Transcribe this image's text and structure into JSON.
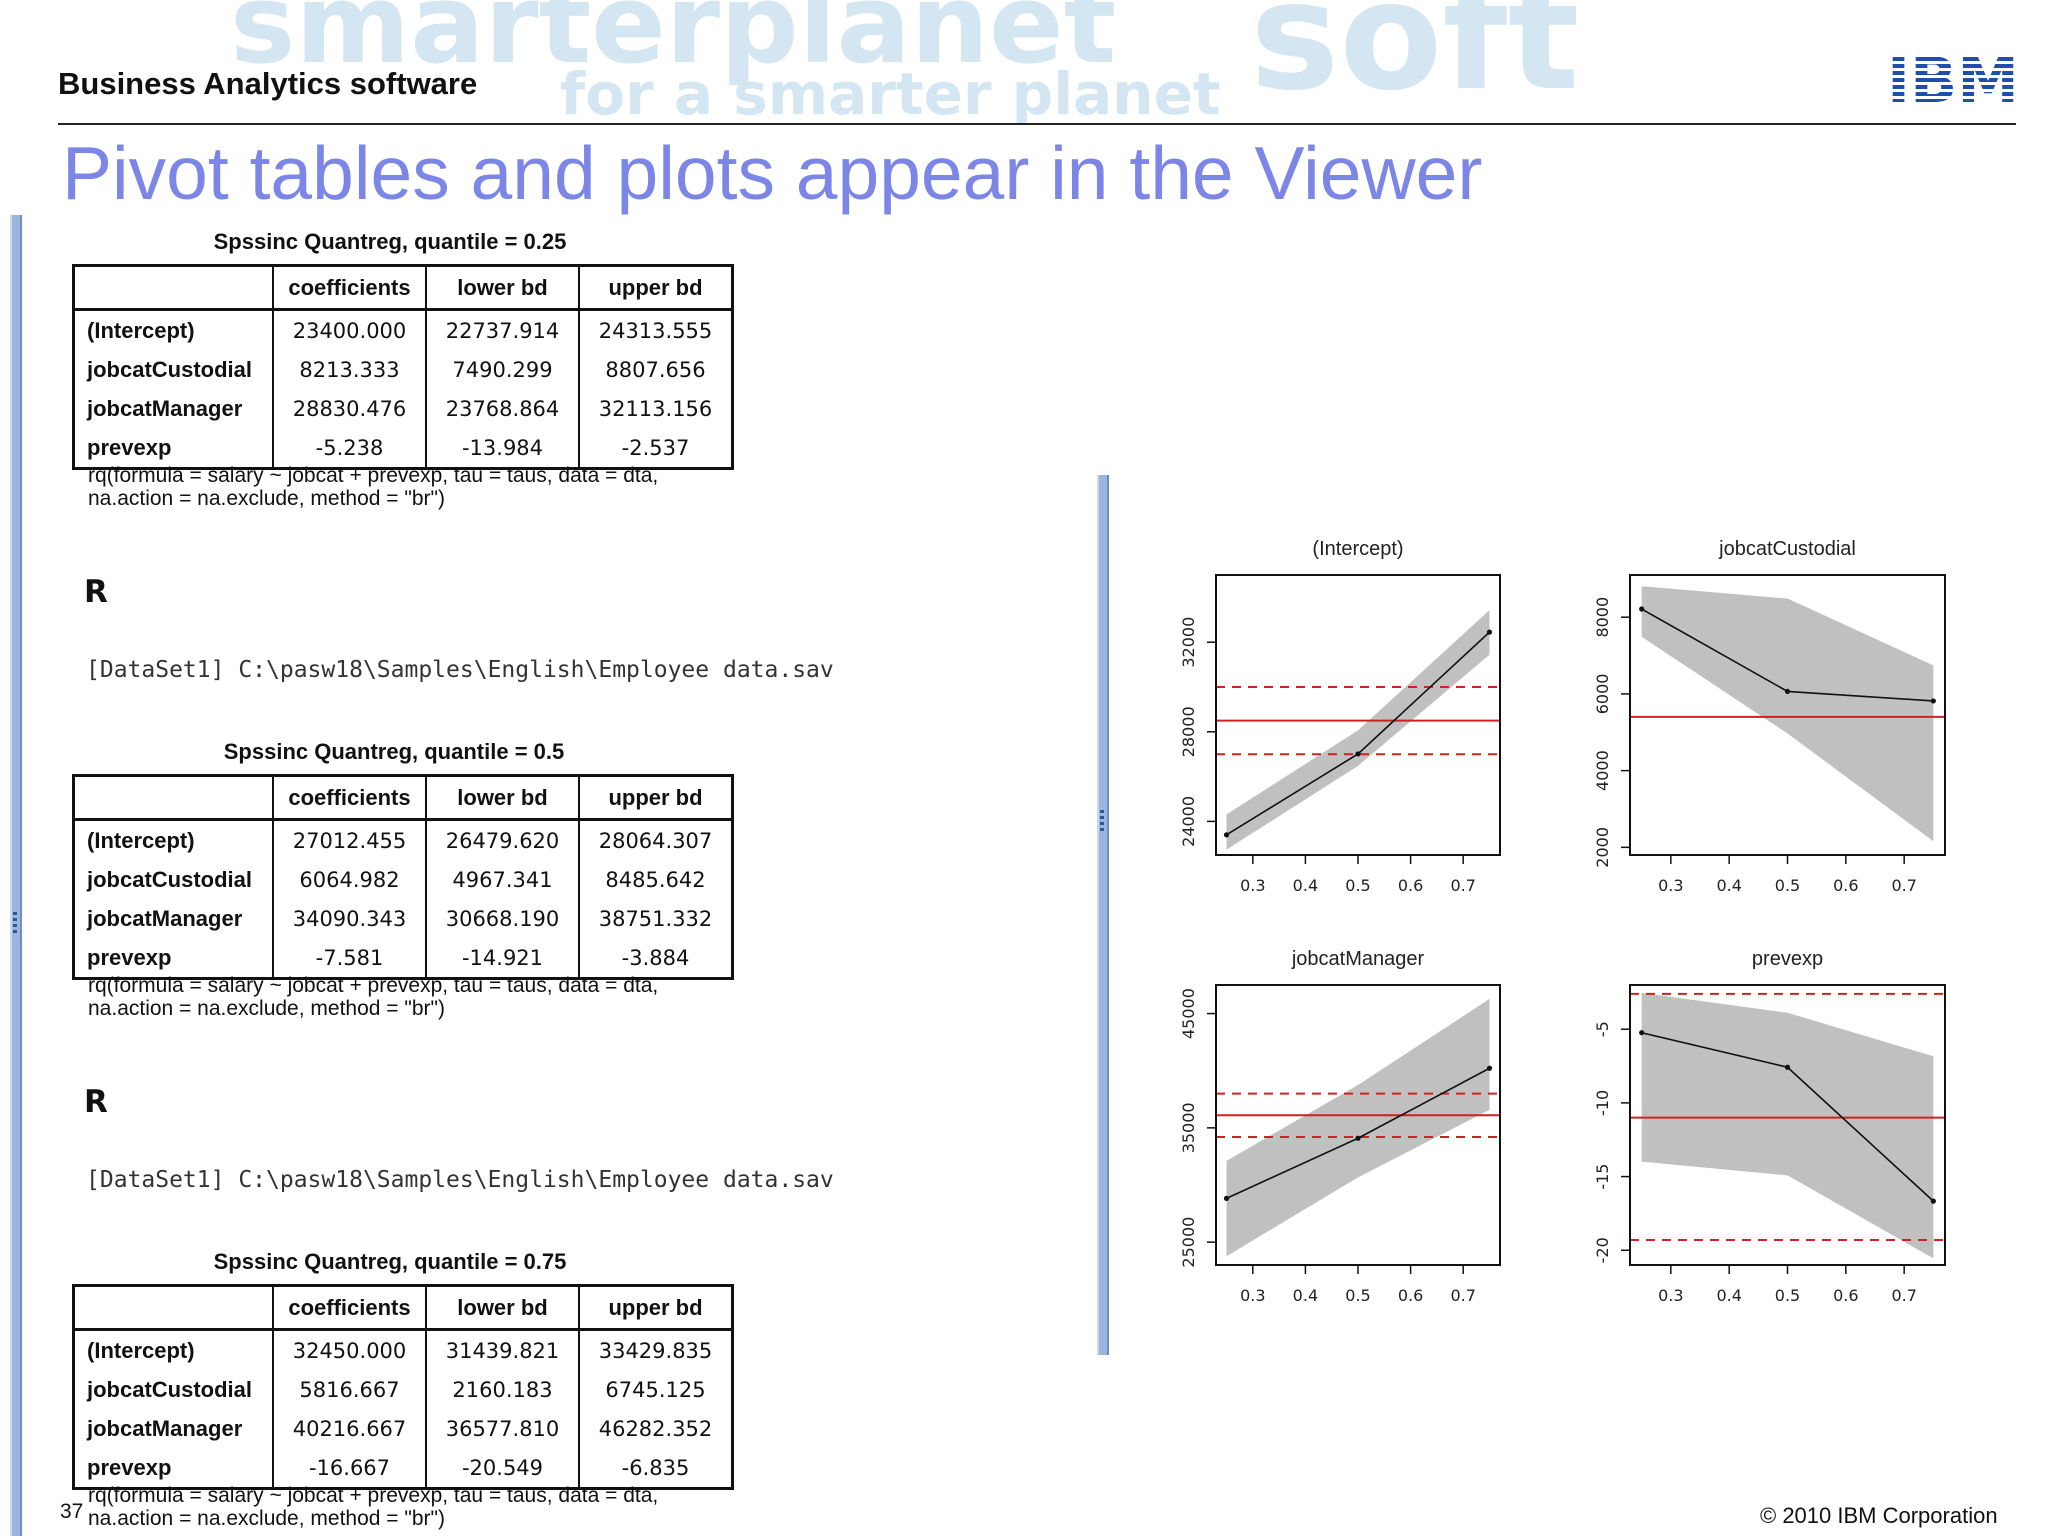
{
  "header": {
    "section": "Business Analytics software",
    "watermark": [
      "smarter",
      "planet",
      "for a smarter planet",
      "soft"
    ],
    "logo_text": "IBM"
  },
  "slide": {
    "title": "Pivot tables and plots appear in the Viewer",
    "page_number": "37",
    "copyright": "© 2010 IBM Corporation"
  },
  "viewer": {
    "columns": [
      "coefficients",
      "lower bd",
      "upper bd"
    ],
    "row_labels": [
      "(Intercept)",
      "jobcatCustodial",
      "jobcatManager",
      "prevexp"
    ],
    "r_label": "R",
    "dataset_line": "[DataSet1] C:\\pasw18\\Samples\\English\\Employee data.sav",
    "formula_note": "rq(formula = salary ~ jobcat + prevexp, tau = taus, data = dta,\nna.action = na.exclude, method = \"br\")",
    "tables": [
      {
        "caption": "Spssinc Quantreg, quantile =  0.25",
        "rows": [
          [
            "23400.000",
            "22737.914",
            "24313.555"
          ],
          [
            "8213.333",
            "7490.299",
            "8807.656"
          ],
          [
            "28830.476",
            "23768.864",
            "32113.156"
          ],
          [
            "-5.238",
            "-13.984",
            "-2.537"
          ]
        ]
      },
      {
        "caption": "Spssinc Quantreg, quantile =  0.5",
        "rows": [
          [
            "27012.455",
            "26479.620",
            "28064.307"
          ],
          [
            "6064.982",
            "4967.341",
            "8485.642"
          ],
          [
            "34090.343",
            "30668.190",
            "38751.332"
          ],
          [
            "-7.581",
            "-14.921",
            "-3.884"
          ]
        ]
      },
      {
        "caption": "Spssinc Quantreg, quantile =  0.75",
        "rows": [
          [
            "32450.000",
            "31439.821",
            "33429.835"
          ],
          [
            "5816.667",
            "2160.183",
            "6745.125"
          ],
          [
            "40216.667",
            "36577.810",
            "46282.352"
          ],
          [
            "-16.667",
            "-20.549",
            "-6.835"
          ]
        ]
      }
    ]
  },
  "chart_data": [
    {
      "type": "line",
      "title": "(Intercept)",
      "x": [
        0.25,
        0.5,
        0.75
      ],
      "y": [
        23400,
        27012,
        32450
      ],
      "band_lower": [
        22738,
        26480,
        31440
      ],
      "band_upper": [
        24314,
        28064,
        33430
      ],
      "ols": 28500,
      "ols_lower": 27000,
      "ols_upper": 30000,
      "xlim": [
        0.23,
        0.77
      ],
      "ylim": [
        22500,
        35000
      ],
      "xticks": [
        "0.3",
        "0.4",
        "0.5",
        "0.6",
        "0.7"
      ],
      "yticks": [
        24000,
        28000,
        32000
      ],
      "yticklabels": [
        "24000",
        "28000",
        "32000"
      ]
    },
    {
      "type": "line",
      "title": "jobcatCustodial",
      "x": [
        0.25,
        0.5,
        0.75
      ],
      "y": [
        8213,
        6065,
        5817
      ],
      "band_lower": [
        7490,
        4967,
        2160
      ],
      "band_upper": [
        8808,
        8486,
        6745
      ],
      "ols": 5400,
      "xlim": [
        0.23,
        0.77
      ],
      "ylim": [
        1800,
        9100
      ],
      "xticks": [
        "0.3",
        "0.4",
        "0.5",
        "0.6",
        "0.7"
      ],
      "yticks": [
        2000,
        4000,
        6000,
        8000
      ],
      "yticklabels": [
        "2000",
        "4000",
        "6000",
        "8000"
      ]
    },
    {
      "type": "line",
      "title": "jobcatManager",
      "x": [
        0.25,
        0.5,
        0.75
      ],
      "y": [
        28830,
        34090,
        40217
      ],
      "band_lower": [
        23769,
        30668,
        36578
      ],
      "band_upper": [
        32113,
        38751,
        46282
      ],
      "ols": 36100,
      "ols_lower": 34200,
      "ols_upper": 38000,
      "xlim": [
        0.23,
        0.77
      ],
      "ylim": [
        23000,
        47500
      ],
      "xticks": [
        "0.3",
        "0.4",
        "0.5",
        "0.6",
        "0.7"
      ],
      "yticks": [
        25000,
        35000,
        45000
      ],
      "yticklabels": [
        "25000",
        "35000",
        "45000"
      ]
    },
    {
      "type": "line",
      "title": "prevexp",
      "x": [
        0.25,
        0.5,
        0.75
      ],
      "y": [
        -5.238,
        -7.581,
        -16.667
      ],
      "band_lower": [
        -13.984,
        -14.921,
        -20.549
      ],
      "band_upper": [
        -2.537,
        -3.884,
        -6.835
      ],
      "ols": -11.0,
      "ols_lower": -19.3,
      "ols_upper": -2.6,
      "xlim": [
        0.23,
        0.77
      ],
      "ylim": [
        -21,
        -2
      ],
      "xticks": [
        "0.3",
        "0.4",
        "0.5",
        "0.6",
        "0.7"
      ],
      "yticks": [
        -20,
        -15,
        -10,
        -5
      ],
      "yticklabels": [
        "-20",
        "-15",
        "-10",
        "-5"
      ]
    }
  ],
  "colors": {
    "title": "#7b86e6",
    "band": "#c0c0c0",
    "ols_line": "#d02020",
    "viewer_edge": "#6f8fbf"
  }
}
